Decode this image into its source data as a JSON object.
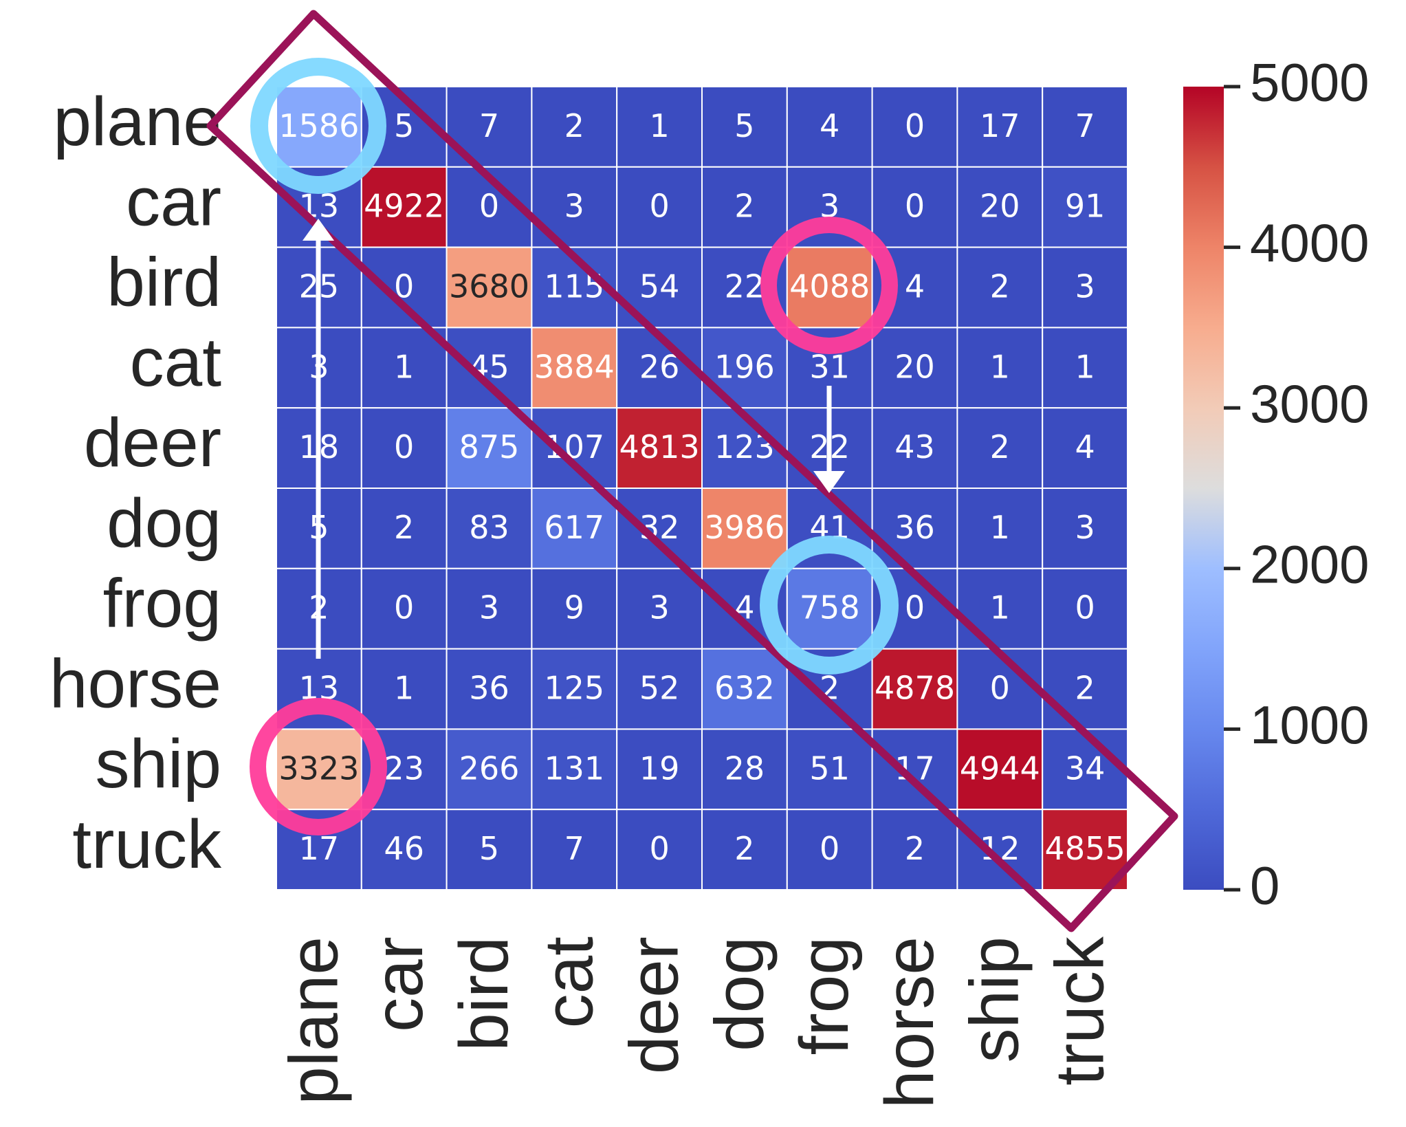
{
  "chart_data": {
    "type": "heatmap",
    "colormap": "coolwarm",
    "categories": [
      "plane",
      "car",
      "bird",
      "cat",
      "deer",
      "dog",
      "frog",
      "horse",
      "ship",
      "truck"
    ],
    "values": [
      [
        1586,
        5,
        7,
        2,
        1,
        5,
        4,
        0,
        17,
        7
      ],
      [
        13,
        4922,
        0,
        3,
        0,
        2,
        3,
        0,
        20,
        91
      ],
      [
        25,
        0,
        3680,
        115,
        54,
        22,
        4088,
        4,
        2,
        3
      ],
      [
        3,
        1,
        45,
        3884,
        26,
        196,
        31,
        20,
        1,
        1
      ],
      [
        18,
        0,
        875,
        107,
        4813,
        123,
        22,
        43,
        2,
        4
      ],
      [
        5,
        2,
        83,
        617,
        32,
        3986,
        41,
        36,
        1,
        3
      ],
      [
        2,
        0,
        3,
        9,
        3,
        4,
        758,
        0,
        1,
        0
      ],
      [
        13,
        1,
        36,
        125,
        52,
        632,
        2,
        4878,
        0,
        2
      ],
      [
        3323,
        23,
        266,
        131,
        19,
        28,
        51,
        17,
        4944,
        34
      ],
      [
        17,
        46,
        5,
        7,
        0,
        2,
        0,
        2,
        12,
        4855
      ]
    ],
    "zlim": [
      0,
      5000
    ],
    "zticks": [
      0,
      1000,
      2000,
      3000,
      4000,
      5000
    ]
  }
}
